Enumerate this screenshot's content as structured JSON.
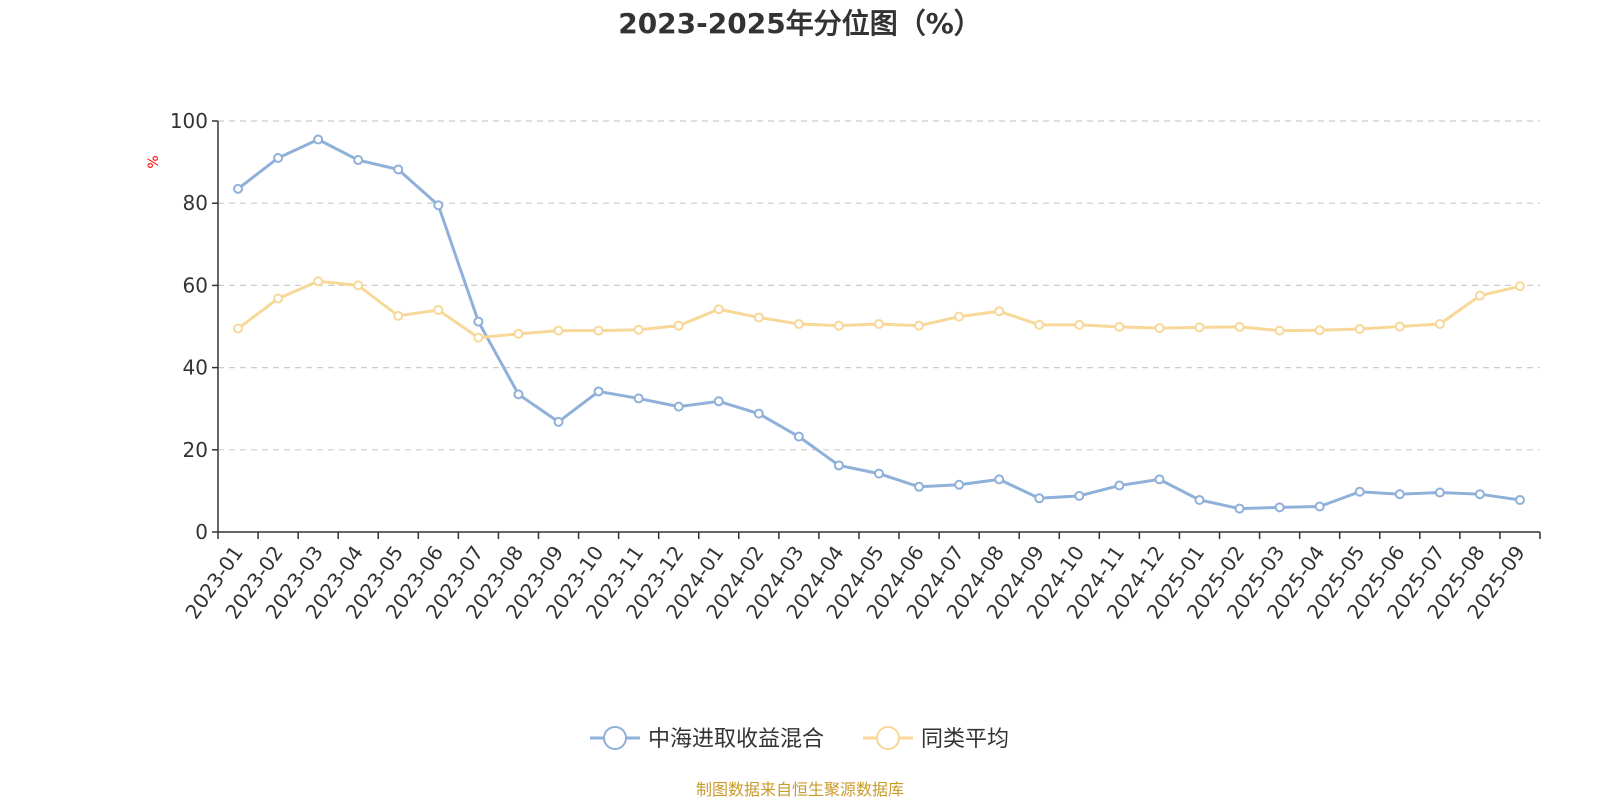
{
  "chart_data": {
    "type": "line",
    "title": "2023-2025年分位图（%）",
    "ylabel": "%",
    "ylim": [
      0,
      100
    ],
    "yticks": [
      0,
      20,
      40,
      60,
      80,
      100
    ],
    "grid": true,
    "legend_position": "bottom",
    "categories": [
      "2023-01",
      "2023-02",
      "2023-03",
      "2023-04",
      "2023-05",
      "2023-06",
      "2023-07",
      "2023-08",
      "2023-09",
      "2023-10",
      "2023-11",
      "2023-12",
      "2024-01",
      "2024-02",
      "2024-03",
      "2024-04",
      "2024-05",
      "2024-06",
      "2024-07",
      "2024-08",
      "2024-09",
      "2024-10",
      "2024-11",
      "2024-12",
      "2025-01",
      "2025-02",
      "2025-03",
      "2025-04",
      "2025-05",
      "2025-06",
      "2025-07",
      "2025-08",
      "2025-09"
    ],
    "series": [
      {
        "name": "中海进取收益混合",
        "color": "#8fb0d9",
        "values": [
          83.5,
          91,
          95.5,
          90.5,
          88.2,
          79.5,
          51.2,
          33.5,
          26.8,
          34.2,
          32.5,
          30.5,
          31.8,
          28.8,
          23.2,
          16.2,
          14.2,
          11.0,
          11.5,
          12.8,
          8.2,
          8.8,
          11.3,
          12.8,
          7.8,
          5.7,
          6.0,
          6.2,
          9.8,
          9.2,
          9.6,
          9.2,
          7.8
        ]
      },
      {
        "name": "同类平均",
        "color": "#f8d898",
        "values": [
          49.5,
          56.8,
          61.0,
          60.0,
          52.6,
          54.0,
          47.3,
          48.2,
          49.0,
          49.0,
          49.2,
          50.2,
          54.2,
          52.2,
          50.6,
          50.2,
          50.6,
          50.2,
          52.4,
          53.7,
          50.4,
          50.4,
          49.9,
          49.6,
          49.8,
          49.9,
          49.0,
          49.1,
          49.4,
          50.0,
          50.6,
          57.5,
          59.8
        ]
      }
    ]
  },
  "footer": {
    "source": "制图数据来自恒生聚源数据库"
  }
}
